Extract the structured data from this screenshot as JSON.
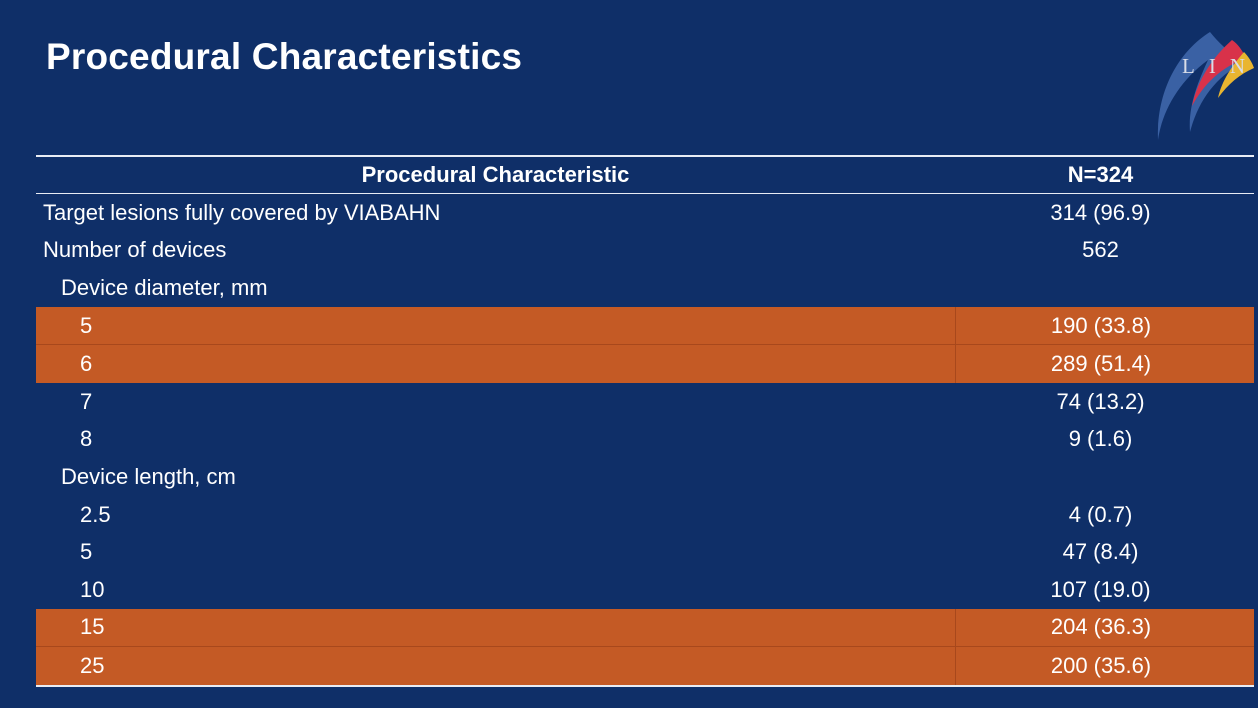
{
  "title": "Procedural Characteristics",
  "logo": {
    "text": "LINC",
    "icon": "linc-logo-icon"
  },
  "colors": {
    "background": "#0f2f68",
    "highlight": "#c45a25",
    "rule": "#e8ecf4"
  },
  "table": {
    "header": {
      "label": "Procedural Characteristic",
      "value": "N=324"
    },
    "rows": [
      {
        "label": "Target lesions fully covered by VIABAHN",
        "value": "314 (96.9)",
        "indent": 0,
        "highlight": false
      },
      {
        "label": "Number of devices",
        "value": "562",
        "indent": 0,
        "highlight": false
      },
      {
        "label": "Device diameter, mm",
        "value": "",
        "indent": 1,
        "highlight": false
      },
      {
        "label": "5",
        "value": "190 (33.8)",
        "indent": 2,
        "highlight": true
      },
      {
        "label": "6",
        "value": "289 (51.4)",
        "indent": 2,
        "highlight": true
      },
      {
        "label": "7",
        "value": "74 (13.2)",
        "indent": 2,
        "highlight": false
      },
      {
        "label": "8",
        "value": "9 (1.6)",
        "indent": 2,
        "highlight": false
      },
      {
        "label": "Device length, cm",
        "value": "",
        "indent": 1,
        "highlight": false
      },
      {
        "label": "2.5",
        "value": "4 (0.7)",
        "indent": 2,
        "highlight": false
      },
      {
        "label": "5",
        "value": "47 (8.4)",
        "indent": 2,
        "highlight": false
      },
      {
        "label": "10",
        "value": "107 (19.0)",
        "indent": 2,
        "highlight": false
      },
      {
        "label": "15",
        "value": "204 (36.3)",
        "indent": 2,
        "highlight": true
      },
      {
        "label": "25",
        "value": "200 (35.6)",
        "indent": 2,
        "highlight": true
      }
    ]
  }
}
